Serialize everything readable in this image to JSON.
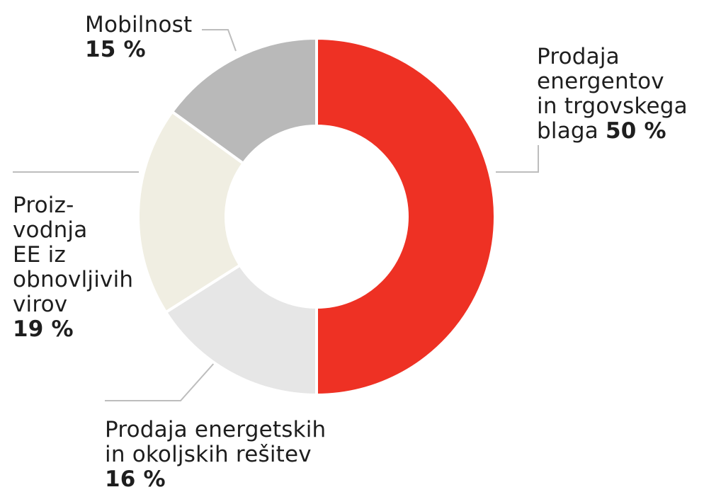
{
  "chart_data": {
    "type": "pie",
    "variant": "donut",
    "categories": [
      "Prodaja energentov in trgovskega blaga",
      "Prodaja energetskih in okoljskih rešitev",
      "Proizvodnja EE iz obnovljivih virov",
      "Mobilnost"
    ],
    "values": [
      50,
      16,
      19,
      15
    ],
    "unit": "%",
    "colors": [
      "#ee3124",
      "#e6e6e6",
      "#f0eee2",
      "#b9b9b9"
    ],
    "legend": "none",
    "start_angle": "top",
    "direction": "clockwise"
  },
  "labels": [
    {
      "lines": [
        "Prodaja",
        "energentov",
        "in trgovskega",
        "blaga "
      ],
      "value": "50 %"
    },
    {
      "lines": [
        "Prodaja energetskih",
        "in okoljskih rešitev"
      ],
      "value": "16 %"
    },
    {
      "lines": [
        "Proiz-",
        "vodnja",
        "EE iz",
        "obnovljivih",
        "virov"
      ],
      "value": "19 %"
    },
    {
      "lines": [
        "Mobilnost"
      ],
      "value": "15 %"
    }
  ]
}
